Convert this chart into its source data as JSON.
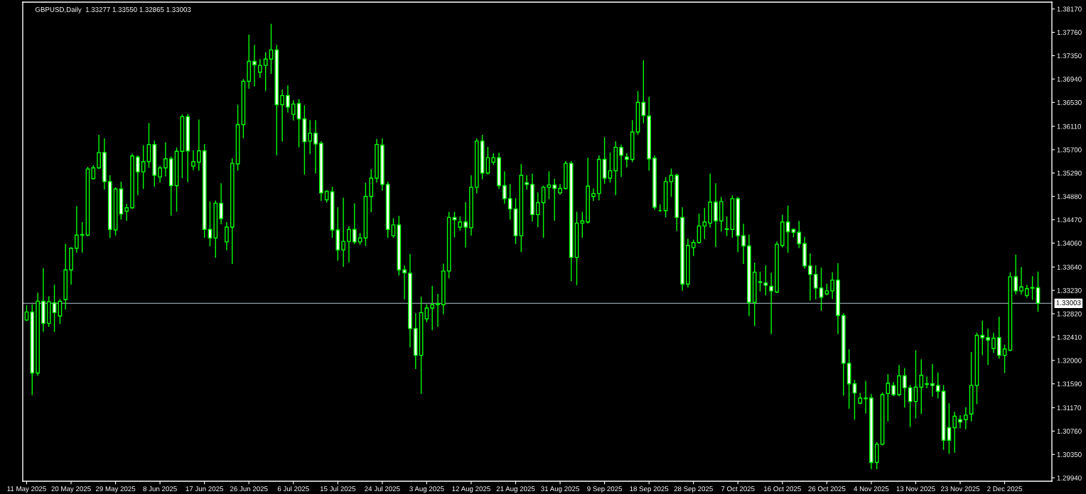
{
  "chart_data": {
    "type": "candlestick",
    "title": "GBPUSD,Daily  1.33277 1.33550 1.32865 1.33003",
    "color": "#00ff00",
    "colors": [
      "#000000",
      "#ffffff",
      "#000000",
      "#ffffff",
      "#000000",
      "#ffffff",
      "#000000",
      "#000000",
      "#000000",
      "#000000",
      "#000000",
      "#000000",
      "#000000",
      "#000000",
      "#ffffff",
      "#ffffff",
      "#000000",
      "#ffffff",
      "#000000",
      "#000000",
      "#ffffff",
      "#000000",
      "#000000",
      "#ffffff",
      "#000000",
      "#000000",
      "#ffffff",
      "#000000",
      "#000000",
      "#ffffff",
      "#000000",
      "#000000",
      "#ffffff",
      "#ffffff",
      "#000000",
      "#ffffff",
      "#000000",
      "#000000",
      "#000000",
      "#000000",
      "#000000",
      "#ffffff",
      "#000000",
      "#000000",
      "#000000",
      "#ffffff",
      "#000000",
      "#ffffff",
      "#000000",
      "#ffffff",
      "#ffffff",
      "#000000",
      "#ffffff",
      "#ffffff",
      "#000000",
      "#ffffff",
      "#ffffff",
      "#000000",
      "#000000",
      "#ffffff",
      "#000000",
      "#000000",
      "#000000",
      "#000000",
      "#ffffff",
      "#ffffff",
      "#000000",
      "#ffffff",
      "#ffffff",
      "#ffffff",
      "#ffffff",
      "#000000",
      "#000000",
      "#000000",
      "#000000",
      "#000000",
      "#000000",
      "#ffffff",
      "#000000",
      "#ffffff",
      "#000000",
      "#000000",
      "#ffffff",
      "#000000",
      "#000000",
      "#ffffff",
      "#ffffff",
      "#ffffff",
      "#ffffff",
      "#000000",
      "#ffffff",
      "#ffffff",
      "#000000",
      "#000000",
      "#000000",
      "#ffffff",
      "#000000",
      "#000000",
      "#ffffff",
      "#000000",
      "#000000",
      "#000000",
      "#000000",
      "#000000",
      "#ffffff",
      "#000000",
      "#000000",
      "#ffffff",
      "#ffffff",
      "#000000",
      "#000000",
      "#ffffff",
      "#ffffff",
      "#ffffff",
      "#00ff00",
      "#000000",
      "#000000",
      "#ffffff",
      "#ffffff",
      "#000000",
      "#000000",
      "#000000",
      "#000000",
      "#000000",
      "#ffffff",
      "#000000",
      "#000000",
      "#000000",
      "#ffffff",
      "#ffffff",
      "#ffffff",
      "#000000",
      "#000000",
      "#ffffff",
      "#ffffff",
      "#000000",
      "#000000",
      "#ffffff",
      "#ffffff",
      "#ffffff",
      "#ffffff",
      "#ffffff",
      "#ffffff",
      "#ffffff",
      "#000000",
      "#000000",
      "#ffffff",
      "#ffffff",
      "#ffffff",
      "#ffffff",
      "#000000",
      "#000000",
      "#ffffff",
      "#000000",
      "#000000",
      "#000000",
      "#ffffff",
      "#000000",
      "#ffffff",
      "#ffffff",
      "#000000",
      "#000000",
      "#000000",
      "#ffffff",
      "#ffffff",
      "#ffffff",
      "#ffffff",
      "#000000",
      "#ffffff",
      "#000000",
      "#000000",
      "#000000",
      "#ffffff",
      "#ffffff",
      "#000000",
      "#ffffff",
      "#000000",
      "#000000",
      "#ffffff",
      "#000000",
      "#000000",
      "#000000",
      "#ffffff"
    ],
    "categories": [
      "11 May 2025",
      null,
      null,
      null,
      null,
      null,
      null,
      null,
      "20 May 2025",
      null,
      null,
      null,
      null,
      null,
      null,
      null,
      "29 May 2025",
      null,
      null,
      null,
      null,
      null,
      null,
      null,
      "8 Jun 2025",
      null,
      null,
      null,
      null,
      null,
      null,
      null,
      "17 Jun 2025",
      null,
      null,
      null,
      null,
      null,
      null,
      null,
      "26 Jun 2025",
      null,
      null,
      null,
      null,
      null,
      null,
      null,
      "6 Jul 2025",
      null,
      null,
      null,
      null,
      null,
      null,
      null,
      "15 Jul 2025",
      null,
      null,
      null,
      null,
      null,
      null,
      null,
      "24 Jul 2025",
      null,
      null,
      null,
      null,
      null,
      null,
      null,
      "3 Aug 2025",
      null,
      null,
      null,
      null,
      null,
      null,
      null,
      "12 Aug 2025",
      null,
      null,
      null,
      null,
      null,
      null,
      null,
      "21 Aug 2025",
      null,
      null,
      null,
      null,
      null,
      null,
      null,
      "31 Aug 2025",
      null,
      null,
      null,
      null,
      null,
      null,
      null,
      "9 Sep 2025",
      null,
      null,
      null,
      null,
      null,
      null,
      null,
      "18 Sep 2025",
      null,
      null,
      null,
      null,
      null,
      null,
      null,
      "28 Sep 2025",
      null,
      null,
      null,
      null,
      null,
      null,
      null,
      "7 Oct 2025",
      null,
      null,
      null,
      null,
      null,
      null,
      null,
      "16 Oct 2025",
      null,
      null,
      null,
      null,
      null,
      null,
      null,
      "26 Oct 2025",
      null,
      null,
      null,
      null,
      null,
      null,
      null,
      "4 Nov 2025",
      null,
      null,
      null,
      null,
      null,
      null,
      null,
      "13 Nov 2025",
      null,
      null,
      null,
      null,
      null,
      null,
      null,
      "23 Nov 2025",
      null,
      null,
      null,
      null,
      null,
      null,
      null,
      "2 Dec 2025",
      null,
      null,
      null,
      null,
      null,
      null
    ],
    "ohlc": [
      [
        1.3271,
        1.3296,
        1.327,
        1.3285
      ],
      [
        1.3285,
        1.3298,
        1.314,
        1.3178
      ],
      [
        1.3178,
        1.3318,
        1.3174,
        1.3304
      ],
      [
        1.3304,
        1.3361,
        1.3251,
        1.3265
      ],
      [
        1.3265,
        1.3312,
        1.326,
        1.3303
      ],
      [
        1.3301,
        1.3332,
        1.3251,
        1.3284
      ],
      [
        1.3278,
        1.3307,
        1.3265,
        1.3304
      ],
      [
        1.3307,
        1.3404,
        1.329,
        1.3359
      ],
      [
        1.3359,
        1.3398,
        1.3334,
        1.3397
      ],
      [
        1.3397,
        1.347,
        1.339,
        1.342
      ],
      [
        1.342,
        1.3442,
        1.339,
        1.3421
      ],
      [
        1.342,
        1.3539,
        1.3419,
        1.3536
      ],
      [
        1.3519,
        1.3542,
        1.3519,
        1.3538
      ],
      [
        1.3538,
        1.3595,
        1.3537,
        1.3565
      ],
      [
        1.3565,
        1.3589,
        1.3501,
        1.3514
      ],
      [
        1.3514,
        1.3524,
        1.3416,
        1.343
      ],
      [
        1.3429,
        1.3503,
        1.342,
        1.3501
      ],
      [
        1.3501,
        1.3513,
        1.3448,
        1.3457
      ],
      [
        1.3462,
        1.3474,
        1.3446,
        1.3468
      ],
      [
        1.3468,
        1.3562,
        1.3467,
        1.3559
      ],
      [
        1.3557,
        1.3559,
        1.3491,
        1.3531
      ],
      [
        1.3531,
        1.3577,
        1.3502,
        1.3549
      ],
      [
        1.3549,
        1.3616,
        1.3539,
        1.3579
      ],
      [
        1.3579,
        1.3585,
        1.3506,
        1.3525
      ],
      [
        1.3522,
        1.3541,
        1.3513,
        1.3538
      ],
      [
        1.3538,
        1.3582,
        1.3524,
        1.3554
      ],
      [
        1.3554,
        1.3557,
        1.3455,
        1.3507
      ],
      [
        1.3507,
        1.3573,
        1.3462,
        1.3567
      ],
      [
        1.3567,
        1.3631,
        1.3521,
        1.3628
      ],
      [
        1.3628,
        1.3632,
        1.3514,
        1.3568
      ],
      [
        1.3541,
        1.3568,
        1.3535,
        1.3549
      ],
      [
        1.3548,
        1.3622,
        1.3534,
        1.3568
      ],
      [
        1.3568,
        1.3579,
        1.3416,
        1.343
      ],
      [
        1.343,
        1.3478,
        1.3401,
        1.3415
      ],
      [
        1.3415,
        1.348,
        1.3381,
        1.3476
      ],
      [
        1.3476,
        1.351,
        1.344,
        1.3449
      ],
      [
        1.3408,
        1.3442,
        1.3394,
        1.3434
      ],
      [
        1.3434,
        1.3554,
        1.337,
        1.3546
      ],
      [
        1.3545,
        1.3648,
        1.3534,
        1.3614
      ],
      [
        1.3614,
        1.3693,
        1.3591,
        1.369
      ],
      [
        1.369,
        1.3771,
        1.3678,
        1.3725
      ],
      [
        1.3725,
        1.3753,
        1.3682,
        1.3719
      ],
      [
        1.3706,
        1.3728,
        1.3697,
        1.3718
      ],
      [
        1.3718,
        1.374,
        1.3674,
        1.3729
      ],
      [
        1.3729,
        1.379,
        1.3704,
        1.3745
      ],
      [
        1.3745,
        1.3753,
        1.3561,
        1.3649
      ],
      [
        1.3649,
        1.3675,
        1.3585,
        1.3665
      ],
      [
        1.3665,
        1.3682,
        1.3636,
        1.3645
      ],
      [
        1.3632,
        1.3656,
        1.3622,
        1.365
      ],
      [
        1.3651,
        1.3658,
        1.3575,
        1.3624
      ],
      [
        1.3624,
        1.3647,
        1.3527,
        1.3584
      ],
      [
        1.3585,
        1.3621,
        1.3563,
        1.3599
      ],
      [
        1.3599,
        1.3621,
        1.3529,
        1.358
      ],
      [
        1.3581,
        1.3584,
        1.3481,
        1.3494
      ],
      [
        1.3482,
        1.3498,
        1.3478,
        1.3497
      ],
      [
        1.3496,
        1.3504,
        1.3416,
        1.3429
      ],
      [
        1.3429,
        1.3468,
        1.3376,
        1.3394
      ],
      [
        1.3394,
        1.3485,
        1.3365,
        1.3409
      ],
      [
        1.3409,
        1.3435,
        1.3373,
        1.343
      ],
      [
        1.343,
        1.3475,
        1.3405,
        1.3408
      ],
      [
        1.3408,
        1.3423,
        1.3404,
        1.3415
      ],
      [
        1.3415,
        1.3511,
        1.3402,
        1.3488
      ],
      [
        1.3488,
        1.3535,
        1.3461,
        1.352
      ],
      [
        1.352,
        1.3588,
        1.3513,
        1.3579
      ],
      [
        1.3578,
        1.3589,
        1.3499,
        1.3509
      ],
      [
        1.3509,
        1.3513,
        1.3416,
        1.343
      ],
      [
        1.3419,
        1.3449,
        1.3416,
        1.3438
      ],
      [
        1.3438,
        1.3453,
        1.335,
        1.3359
      ],
      [
        1.3359,
        1.3366,
        1.3308,
        1.3354
      ],
      [
        1.3353,
        1.3386,
        1.3224,
        1.3256
      ],
      [
        1.3256,
        1.3282,
        1.3186,
        1.3209
      ],
      [
        1.3209,
        1.3311,
        1.3142,
        1.3284
      ],
      [
        1.3273,
        1.3298,
        1.3268,
        1.3292
      ],
      [
        1.3292,
        1.333,
        1.3254,
        1.3298
      ],
      [
        1.3298,
        1.3316,
        1.326,
        1.33
      ],
      [
        1.3298,
        1.3369,
        1.3282,
        1.3357
      ],
      [
        1.3357,
        1.346,
        1.3345,
        1.3451
      ],
      [
        1.3451,
        1.346,
        1.3417,
        1.3447
      ],
      [
        1.3434,
        1.3452,
        1.3429,
        1.3443
      ],
      [
        1.3443,
        1.3477,
        1.3399,
        1.3434
      ],
      [
        1.3433,
        1.3524,
        1.342,
        1.3504
      ],
      [
        1.3504,
        1.3589,
        1.3494,
        1.3585
      ],
      [
        1.3585,
        1.3595,
        1.3519,
        1.3529
      ],
      [
        1.3529,
        1.3574,
        1.3527,
        1.3556
      ],
      [
        1.3548,
        1.3563,
        1.3544,
        1.3556
      ],
      [
        1.3556,
        1.3564,
        1.3502,
        1.3507
      ],
      [
        1.3507,
        1.3531,
        1.3476,
        1.3484
      ],
      [
        1.3484,
        1.3509,
        1.3448,
        1.3466
      ],
      [
        1.3466,
        1.3484,
        1.3405,
        1.3419
      ],
      [
        1.3419,
        1.3544,
        1.3391,
        1.3525
      ],
      [
        1.3512,
        1.3524,
        1.3501,
        1.3509
      ],
      [
        1.3509,
        1.3527,
        1.3445,
        1.3456
      ],
      [
        1.3456,
        1.3494,
        1.3435,
        1.3477
      ],
      [
        1.3477,
        1.3506,
        1.3416,
        1.3504
      ],
      [
        1.3504,
        1.3531,
        1.3484,
        1.3508
      ],
      [
        1.3508,
        1.3518,
        1.3446,
        1.3502
      ],
      [
        1.3494,
        1.3509,
        1.3492,
        1.3502
      ],
      [
        1.3502,
        1.3549,
        1.3501,
        1.3546
      ],
      [
        1.3546,
        1.3549,
        1.334,
        1.3381
      ],
      [
        1.3381,
        1.346,
        1.3333,
        1.3441
      ],
      [
        1.3441,
        1.346,
        1.3416,
        1.3445
      ],
      [
        1.3443,
        1.3555,
        1.3441,
        1.3506
      ],
      [
        1.3488,
        1.3501,
        1.3481,
        1.3493
      ],
      [
        1.3493,
        1.3559,
        1.3482,
        1.3553
      ],
      [
        1.3553,
        1.3591,
        1.3511,
        1.352
      ],
      [
        1.352,
        1.3564,
        1.3513,
        1.3533
      ],
      [
        1.3533,
        1.3584,
        1.3491,
        1.3574
      ],
      [
        1.3574,
        1.3578,
        1.3523,
        1.356
      ],
      [
        1.3557,
        1.3563,
        1.354,
        1.3553
      ],
      [
        1.3553,
        1.3621,
        1.3549,
        1.3601
      ],
      [
        1.3601,
        1.3672,
        1.3597,
        1.3653
      ],
      [
        1.3653,
        1.3726,
        1.3617,
        1.363
      ],
      [
        1.3629,
        1.3662,
        1.3534,
        1.3554
      ],
      [
        1.3555,
        1.3559,
        1.3465,
        1.3469
      ],
      [
        1.3463,
        1.3473,
        1.3462,
        1.3463
      ],
      [
        1.3463,
        1.3521,
        1.3452,
        1.3514
      ],
      [
        1.3514,
        1.3536,
        1.3488,
        1.3525
      ],
      [
        1.3525,
        1.3527,
        1.3428,
        1.3451
      ],
      [
        1.3451,
        1.3468,
        1.3323,
        1.3334
      ],
      [
        1.3334,
        1.3413,
        1.3329,
        1.3402
      ],
      [
        1.3398,
        1.3411,
        1.3384,
        1.3407
      ],
      [
        1.3407,
        1.3457,
        1.3406,
        1.3436
      ],
      [
        1.3436,
        1.3467,
        1.3414,
        1.3443
      ],
      [
        1.3441,
        1.3527,
        1.3434,
        1.3478
      ],
      [
        1.3478,
        1.351,
        1.34,
        1.3445
      ],
      [
        1.3445,
        1.3486,
        1.3427,
        1.3479
      ],
      [
        1.343,
        1.3452,
        1.3419,
        1.3431
      ],
      [
        1.343,
        1.3489,
        1.3416,
        1.3484
      ],
      [
        1.3484,
        1.3486,
        1.3391,
        1.3419
      ],
      [
        1.3419,
        1.3439,
        1.337,
        1.3401
      ],
      [
        1.3401,
        1.342,
        1.3279,
        1.3302
      ],
      [
        1.3302,
        1.3371,
        1.3261,
        1.3355
      ],
      [
        1.3337,
        1.3355,
        1.3322,
        1.3338
      ],
      [
        1.3336,
        1.3366,
        1.3315,
        1.3332
      ],
      [
        1.333,
        1.3353,
        1.3247,
        1.3322
      ],
      [
        1.332,
        1.3408,
        1.3319,
        1.3404
      ],
      [
        1.3402,
        1.3455,
        1.3399,
        1.3443
      ],
      [
        1.3443,
        1.3471,
        1.339,
        1.3426
      ],
      [
        1.343,
        1.3431,
        1.3417,
        1.3425
      ],
      [
        1.3425,
        1.3444,
        1.3398,
        1.3405
      ],
      [
        1.3405,
        1.3416,
        1.3362,
        1.3366
      ],
      [
        1.3366,
        1.3387,
        1.3306,
        1.3351
      ],
      [
        1.3351,
        1.3366,
        1.3308,
        1.3327
      ],
      [
        1.3327,
        1.3362,
        1.3288,
        1.3311
      ],
      [
        1.3317,
        1.3334,
        1.3315,
        1.3322
      ],
      [
        1.3322,
        1.3354,
        1.3309,
        1.3341
      ],
      [
        1.3341,
        1.337,
        1.3247,
        1.3279
      ],
      [
        1.3279,
        1.3282,
        1.3139,
        1.3195
      ],
      [
        1.3195,
        1.3219,
        1.3116,
        1.3159
      ],
      [
        1.3159,
        1.3165,
        1.3097,
        1.3143
      ],
      [
        1.3125,
        1.3142,
        1.3124,
        1.3134
      ],
      [
        1.3133,
        1.3163,
        1.3108,
        1.3134
      ],
      [
        1.3134,
        1.314,
        1.301,
        1.3021
      ],
      [
        1.3021,
        1.3056,
        1.301,
        1.3053
      ],
      [
        1.3053,
        1.3143,
        1.3052,
        1.314
      ],
      [
        1.3142,
        1.3175,
        1.3094,
        1.316
      ],
      [
        1.3156,
        1.3161,
        1.3138,
        1.314
      ],
      [
        1.314,
        1.3191,
        1.3138,
        1.3173
      ],
      [
        1.3173,
        1.3186,
        1.3118,
        1.3152
      ],
      [
        1.3152,
        1.3156,
        1.3084,
        1.3128
      ],
      [
        1.3128,
        1.3217,
        1.3099,
        1.3153
      ],
      [
        1.3153,
        1.3201,
        1.3107,
        1.3174
      ],
      [
        1.3158,
        1.3171,
        1.3152,
        1.3159
      ],
      [
        1.3159,
        1.3193,
        1.3137,
        1.3156
      ],
      [
        1.3156,
        1.3178,
        1.3134,
        1.3146
      ],
      [
        1.3146,
        1.3156,
        1.3044,
        1.306
      ],
      [
        1.3082,
        1.3124,
        1.3037,
        1.306
      ],
      [
        1.3082,
        1.3109,
        1.3039,
        1.3102
      ],
      [
        1.3096,
        1.3103,
        1.3082,
        1.3092
      ],
      [
        1.3096,
        1.3117,
        1.308,
        1.3104
      ],
      [
        1.3106,
        1.3214,
        1.3094,
        1.3156
      ],
      [
        1.3156,
        1.3248,
        1.3124,
        1.3244
      ],
      [
        1.3244,
        1.3269,
        1.321,
        1.324
      ],
      [
        1.324,
        1.3255,
        1.3193,
        1.3236
      ],
      [
        1.3221,
        1.3248,
        1.3214,
        1.3239
      ],
      [
        1.324,
        1.3276,
        1.3204,
        1.3209
      ],
      [
        1.3209,
        1.3227,
        1.3179,
        1.322
      ],
      [
        1.3218,
        1.3354,
        1.3217,
        1.3347
      ],
      [
        1.3347,
        1.3385,
        1.3317,
        1.3322
      ],
      [
        1.3322,
        1.3363,
        1.3317,
        1.3329
      ],
      [
        1.3314,
        1.3332,
        1.3311,
        1.3326
      ],
      [
        1.3327,
        1.3347,
        1.3307,
        1.3328
      ],
      [
        1.33277,
        1.3355,
        1.32865,
        1.33003
      ]
    ],
    "ylim": [
      1.2988,
      1.3829
    ],
    "yticks": [
      {
        "value": 1.2994,
        "label": "1.29940"
      },
      {
        "value": 1.3035,
        "label": "1.30350"
      },
      {
        "value": 1.3076,
        "label": "1.30760"
      },
      {
        "value": 1.3117,
        "label": "1.31170"
      },
      {
        "value": 1.3159,
        "label": "1.31590"
      },
      {
        "value": 1.32,
        "label": "1.32000"
      },
      {
        "value": 1.3241,
        "label": "1.32410"
      },
      {
        "value": 1.3282,
        "label": "1.32820"
      },
      {
        "value": 1.3323,
        "label": "1.33230"
      },
      {
        "value": 1.3364,
        "label": "1.33640"
      },
      {
        "value": 1.3406,
        "label": "1.34060"
      },
      {
        "value": 1.3447,
        "label": "1.34470"
      },
      {
        "value": 1.3488,
        "label": "1.34880"
      },
      {
        "value": 1.3529,
        "label": "1.35290"
      },
      {
        "value": 1.357,
        "label": "1.35700"
      },
      {
        "value": 1.3611,
        "label": "1.36110"
      },
      {
        "value": 1.3653,
        "label": "1.36530"
      },
      {
        "value": 1.3694,
        "label": "1.36940"
      },
      {
        "value": 1.3735,
        "label": "1.37350"
      },
      {
        "value": 1.3776,
        "label": "1.37760"
      },
      {
        "value": 1.3817,
        "label": "1.38170"
      }
    ],
    "ref_lines": [
      {
        "axis": "y",
        "value": 1.33003,
        "label": "1.33003",
        "color": "#8c9ca4"
      }
    ]
  }
}
